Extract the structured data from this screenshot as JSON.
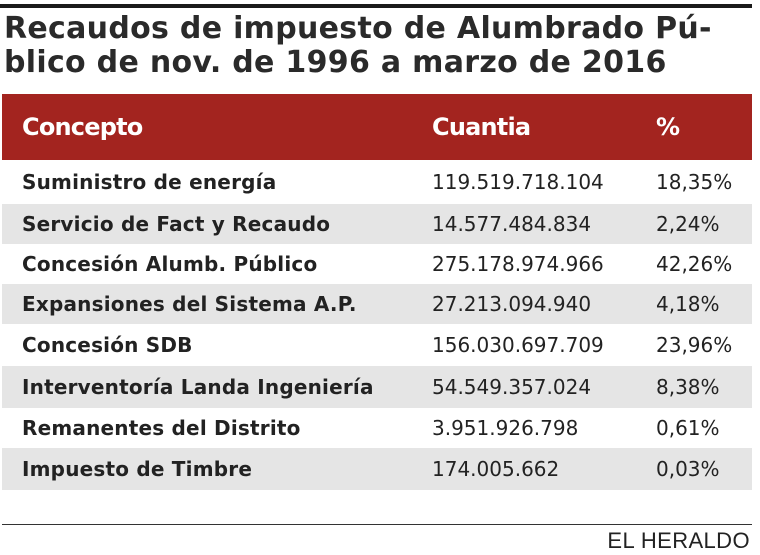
{
  "title": "Recaudos de impuesto de Alumbrado Pú- blico de nov. de 1996 a marzo de 2016",
  "title_lines": [
    "Recaudos de impuesto de Alumbrado Pú-",
    "blico de nov. de 1996 a marzo de 2016"
  ],
  "colors": {
    "header_bg": "#a3241f",
    "stripe": "#e5e5e5"
  },
  "chart_data": {
    "type": "table",
    "title": "Recaudos de impuesto de Alumbrado Público de nov. de 1996 a marzo de 2016",
    "columns": [
      "Concepto",
      "Cuantia",
      "%"
    ],
    "rows": [
      [
        "Suministro de energía",
        "119.519.718.104",
        "18,35%"
      ],
      [
        "Servicio de Fact y Recaudo",
        "14.577.484.834",
        "2,24%"
      ],
      [
        "Concesión Alumb. Público",
        "275.178.974.966",
        "42,26%"
      ],
      [
        "Expansiones del Sistema A.P.",
        "27.213.094.940",
        "4,18%"
      ],
      [
        "Concesión SDB",
        "156.030.697.709",
        "23,96%"
      ],
      [
        "Interventoría Landa Ingeniería",
        "54.549.357.024",
        "8,38%"
      ],
      [
        "Remanentes del Distrito",
        "3.951.926.798",
        "0,61%"
      ],
      [
        "Impuesto de Timbre",
        "174.005.662",
        "0,03%"
      ]
    ]
  },
  "source": "EL HERALDO"
}
